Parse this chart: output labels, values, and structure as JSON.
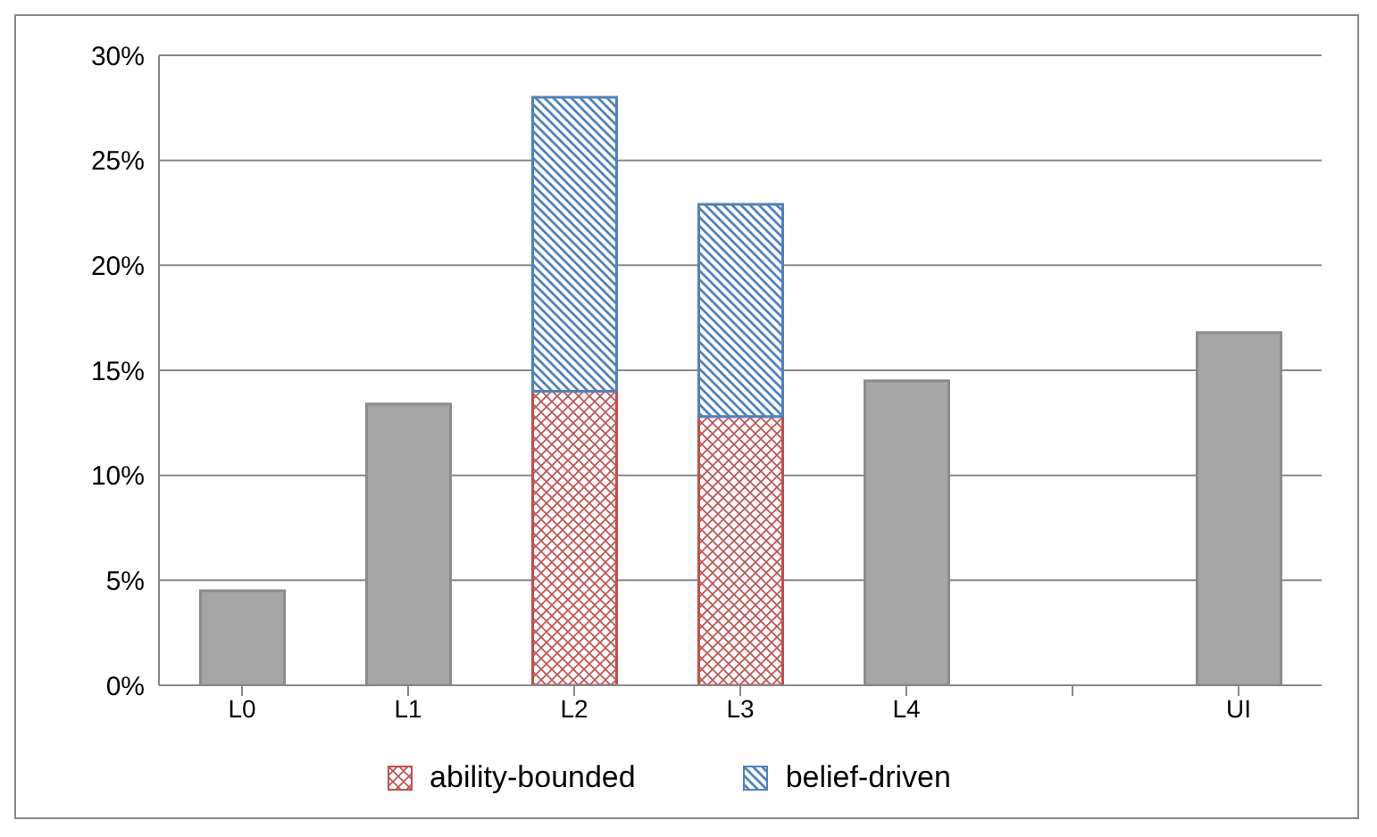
{
  "chart_data": {
    "type": "bar",
    "stacked": true,
    "categories": [
      "L0",
      "L1",
      "L2",
      "L3",
      "L4",
      null,
      "UI"
    ],
    "series": [
      {
        "color": "#a6a6a6",
        "values": [
          4.5,
          13.4,
          null,
          null,
          14.5,
          null,
          16.8
        ]
      },
      {
        "name": "ability-bounded",
        "color": "#c0504d",
        "values": [
          null,
          null,
          14,
          12.8,
          null,
          null,
          null
        ]
      },
      {
        "name": "belief-driven",
        "color": "#4f81bd",
        "values": [
          null,
          null,
          14,
          10.1,
          null,
          null,
          null
        ]
      }
    ],
    "ylim": [
      0,
      30
    ],
    "yticks": [
      {
        "value": 0,
        "label": "0%"
      },
      {
        "value": 5,
        "label": "5%"
      },
      {
        "value": 10,
        "label": "10%"
      },
      {
        "value": 15,
        "label": "15%"
      },
      {
        "value": 20,
        "label": "20%"
      },
      {
        "value": 25,
        "label": "25%"
      },
      {
        "value": 30,
        "label": "30%"
      }
    ],
    "grid": "y",
    "legend": "bottom"
  }
}
